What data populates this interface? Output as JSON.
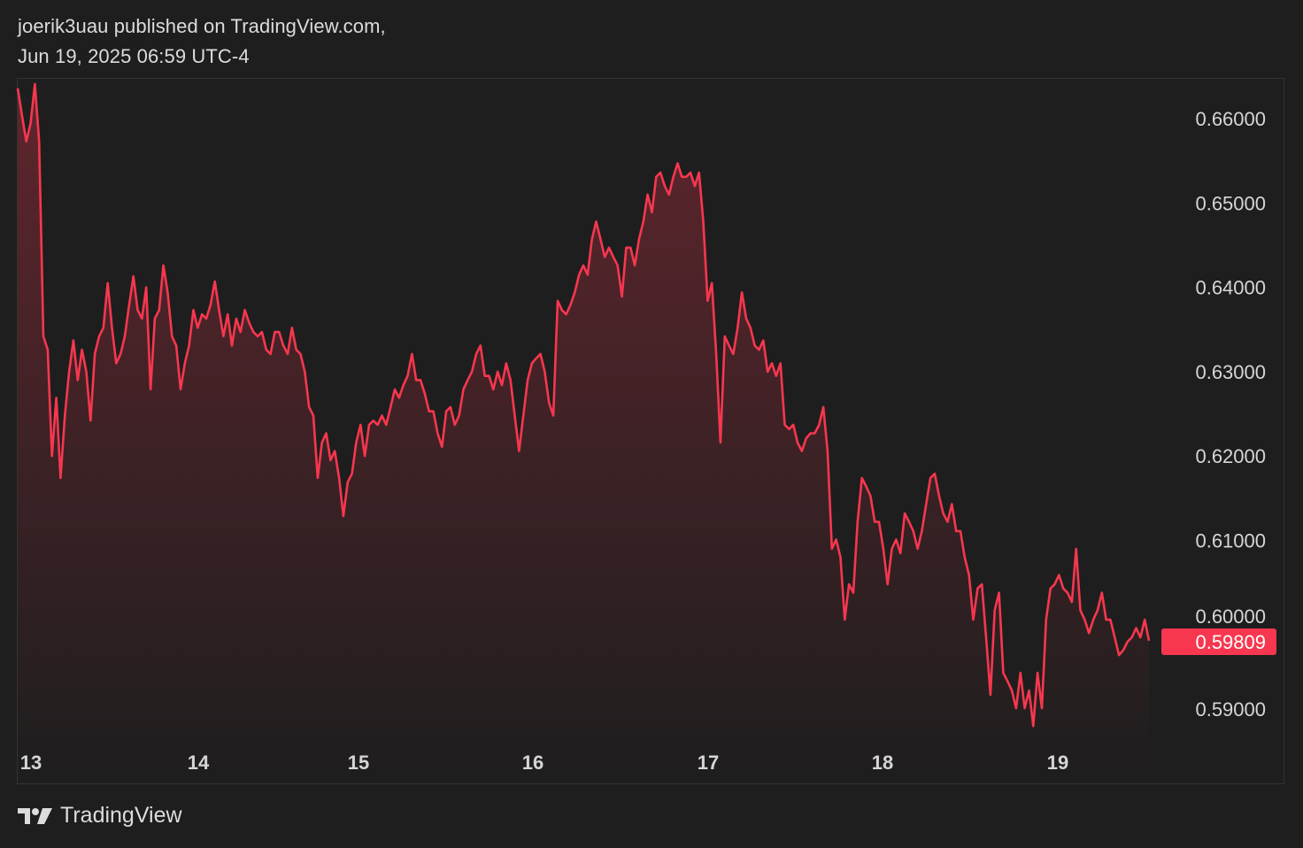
{
  "header": {
    "line1": "joerik3uau published on TradingView.com,",
    "line2": "Jun 19, 2025 06:59 UTC-4"
  },
  "footer": {
    "brand": "TradingView"
  },
  "colors": {
    "line": "#f7374f",
    "badge": "#f7374f",
    "background": "#1e1e1e"
  },
  "chart_data": {
    "type": "area",
    "title": "",
    "xlabel": "",
    "ylabel": "",
    "x_tick_labels": [
      "13",
      "14",
      "15",
      "16",
      "17",
      "18",
      "19"
    ],
    "y_tick_labels": [
      "0.66000",
      "0.65000",
      "0.64000",
      "0.63000",
      "0.62000",
      "0.61000",
      "0.60000",
      "0.59000"
    ],
    "y_ticks": [
      0.66,
      0.65,
      0.64,
      0.63,
      0.62,
      0.61,
      0.6,
      0.59
    ],
    "ylim": [
      0.5855,
      0.6684
    ],
    "x_range_days": [
      "Jun 13 (early)",
      "Jun 19 (latest)"
    ],
    "last_price": "0.59809",
    "grid": false,
    "values": [
      0.6636,
      0.6604,
      0.6573,
      0.6594,
      0.6641,
      0.6573,
      0.6342,
      0.6326,
      0.62,
      0.6269,
      0.6174,
      0.6248,
      0.63,
      0.6337,
      0.629,
      0.6326,
      0.63,
      0.6242,
      0.6321,
      0.6342,
      0.6352,
      0.6405,
      0.6352,
      0.631,
      0.6321,
      0.6342,
      0.6379,
      0.6413,
      0.6373,
      0.6363,
      0.64,
      0.6279,
      0.6363,
      0.6373,
      0.6426,
      0.6394,
      0.6342,
      0.6331,
      0.6279,
      0.631,
      0.6331,
      0.6373,
      0.6352,
      0.6368,
      0.6363,
      0.6379,
      0.6407,
      0.6373,
      0.6342,
      0.6368,
      0.6331,
      0.6363,
      0.6347,
      0.6373,
      0.6358,
      0.6347,
      0.6342,
      0.6347,
      0.6326,
      0.6321,
      0.6347,
      0.6347,
      0.6331,
      0.6321,
      0.6352,
      0.6326,
      0.6321,
      0.63,
      0.6258,
      0.6248,
      0.6174,
      0.6216,
      0.6227,
      0.6195,
      0.6206,
      0.6174,
      0.6129,
      0.6169,
      0.6179,
      0.6216,
      0.6237,
      0.62,
      0.6237,
      0.6242,
      0.6237,
      0.6248,
      0.6237,
      0.6258,
      0.6279,
      0.6269,
      0.6284,
      0.6295,
      0.6321,
      0.629,
      0.629,
      0.6274,
      0.6253,
      0.6253,
      0.6227,
      0.6211,
      0.6253,
      0.6258,
      0.6237,
      0.6248,
      0.6279,
      0.629,
      0.63,
      0.6321,
      0.6331,
      0.6295,
      0.6295,
      0.6279,
      0.63,
      0.6284,
      0.631,
      0.629,
      0.6248,
      0.6206,
      0.6248,
      0.629,
      0.631,
      0.6316,
      0.6321,
      0.63,
      0.6263,
      0.6248,
      0.6384,
      0.6373,
      0.6368,
      0.6379,
      0.6394,
      0.6415,
      0.6426,
      0.6415,
      0.6457,
      0.6478,
      0.6457,
      0.6436,
      0.6447,
      0.6436,
      0.6426,
      0.6389,
      0.6447,
      0.6447,
      0.6426,
      0.6457,
      0.6478,
      0.651,
      0.6489,
      0.6531,
      0.6536,
      0.652,
      0.651,
      0.6531,
      0.6547,
      0.6531,
      0.6531,
      0.6536,
      0.652,
      0.6536,
      0.6478,
      0.6384,
      0.6405,
      0.6321,
      0.6216,
      0.6342,
      0.6331,
      0.6321,
      0.6352,
      0.6394,
      0.6363,
      0.6352,
      0.6331,
      0.6326,
      0.6337,
      0.63,
      0.631,
      0.6295,
      0.631,
      0.6237,
      0.6232,
      0.6237,
      0.6216,
      0.6206,
      0.6221,
      0.6227,
      0.6227,
      0.6237,
      0.6258,
      0.6206,
      0.609,
      0.6101,
      0.608,
      0.6006,
      0.6048,
      0.6038,
      0.6122,
      0.6174,
      0.6164,
      0.6153,
      0.6122,
      0.6122,
      0.609,
      0.6048,
      0.609,
      0.6101,
      0.6085,
      0.6132,
      0.6122,
      0.6111,
      0.609,
      0.6111,
      0.6143,
      0.6174,
      0.6179,
      0.6153,
      0.6132,
      0.6122,
      0.6143,
      0.6111,
      0.6111,
      0.608,
      0.6059,
      0.6006,
      0.6043,
      0.6048,
      0.5985,
      0.5917,
      0.6017,
      0.6038,
      0.5943,
      0.5933,
      0.5922,
      0.5901,
      0.5943,
      0.5901,
      0.5922,
      0.588,
      0.5943,
      0.5901,
      0.6006,
      0.6043,
      0.6048,
      0.6059,
      0.6043,
      0.6038,
      0.6027,
      0.609,
      0.6017,
      0.6006,
      0.599,
      0.6006,
      0.6017,
      0.6038,
      0.6006,
      0.6006,
      0.5985,
      0.5964,
      0.597,
      0.598,
      0.5985,
      0.5996,
      0.5985,
      0.6006,
      0.5981
    ]
  }
}
